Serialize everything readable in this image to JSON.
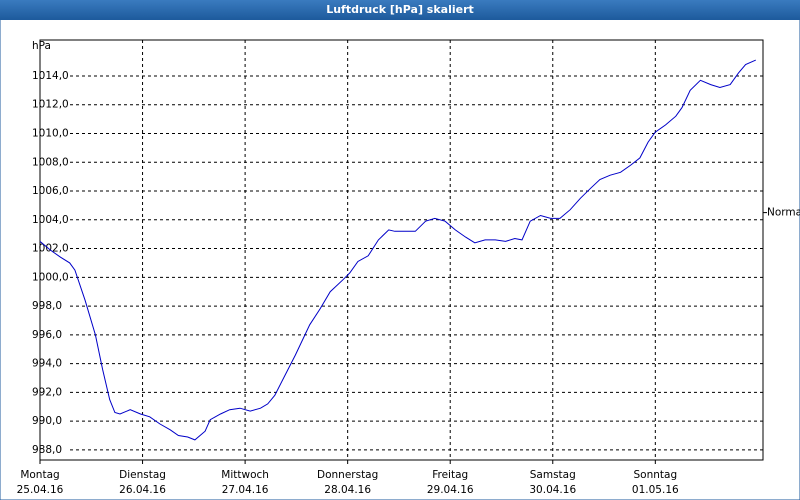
{
  "chart_data": {
    "type": "line",
    "title": "Luftdruck [hPa] skaliert",
    "y_unit": "hPa",
    "xlim": [
      0,
      7.05
    ],
    "ylim": [
      987.3,
      1016.5
    ],
    "xticks": [
      {
        "value": 0,
        "label": "Montag",
        "sublabel": "25.04.16"
      },
      {
        "value": 1,
        "label": "Dienstag",
        "sublabel": "26.04.16"
      },
      {
        "value": 2,
        "label": "Mittwoch",
        "sublabel": "27.04.16"
      },
      {
        "value": 3,
        "label": "Donnerstag",
        "sublabel": "28.04.16"
      },
      {
        "value": 4,
        "label": "Freitag",
        "sublabel": "29.04.16"
      },
      {
        "value": 5,
        "label": "Samstag",
        "sublabel": "30.04.16"
      },
      {
        "value": 6,
        "label": "Sonntag",
        "sublabel": "01.05.16"
      }
    ],
    "yticks": [
      {
        "value": 988,
        "label": "988,0"
      },
      {
        "value": 990,
        "label": "990,0"
      },
      {
        "value": 992,
        "label": "992,0"
      },
      {
        "value": 994,
        "label": "994,0"
      },
      {
        "value": 996,
        "label": "996,0"
      },
      {
        "value": 998,
        "label": "998,0"
      },
      {
        "value": 1000,
        "label": "1000,0"
      },
      {
        "value": 1002,
        "label": "1002,0"
      },
      {
        "value": 1004,
        "label": "1004,0"
      },
      {
        "value": 1006,
        "label": "1006,0"
      },
      {
        "value": 1008,
        "label": "1008,0"
      },
      {
        "value": 1010,
        "label": "1010,0"
      },
      {
        "value": 1012,
        "label": "1012,0"
      },
      {
        "value": 1014,
        "label": "1014,0"
      }
    ],
    "grid": true,
    "reference": {
      "label": "Normal",
      "value": 1004.5
    },
    "series": [
      {
        "color": "#0000c8",
        "x": [
          0,
          0.1,
          0.2,
          0.29,
          0.34,
          0.44,
          0.54,
          0.61,
          0.68,
          0.73,
          0.78,
          0.88,
          0.98,
          1.07,
          1.17,
          1.27,
          1.35,
          1.44,
          1.51,
          1.61,
          1.66,
          1.76,
          1.85,
          1.95,
          2.05,
          2.15,
          2.22,
          2.29,
          2.39,
          2.49,
          2.63,
          2.73,
          2.83,
          2.95,
          3.02,
          3.1,
          3.2,
          3.3,
          3.4,
          3.46,
          3.56,
          3.66,
          3.76,
          3.85,
          3.95,
          4.05,
          4.15,
          4.24,
          4.34,
          4.44,
          4.54,
          4.63,
          4.7,
          4.78,
          4.88,
          4.98,
          5.07,
          5.17,
          5.27,
          5.37,
          5.46,
          5.56,
          5.66,
          5.76,
          5.85,
          5.93,
          6.0,
          6.1,
          6.2,
          6.26,
          6.34,
          6.44,
          6.54,
          6.63,
          6.73,
          6.81,
          6.88,
          6.98
        ],
        "values": [
          1002.5,
          1001.9,
          1001.4,
          1001.0,
          1000.5,
          998.4,
          996.0,
          993.6,
          991.5,
          990.6,
          990.5,
          990.8,
          990.5,
          990.3,
          989.8,
          989.4,
          989.0,
          988.9,
          988.7,
          989.3,
          990.1,
          990.5,
          990.8,
          990.9,
          990.7,
          990.9,
          991.2,
          991.8,
          993.2,
          994.6,
          996.7,
          997.8,
          999.0,
          999.8,
          1000.3,
          1001.1,
          1001.5,
          1002.6,
          1003.3,
          1003.2,
          1003.2,
          1003.2,
          1003.9,
          1004.1,
          1003.9,
          1003.3,
          1002.8,
          1002.4,
          1002.6,
          1002.6,
          1002.5,
          1002.7,
          1002.6,
          1003.9,
          1004.3,
          1004.1,
          1004.1,
          1004.7,
          1005.5,
          1006.2,
          1006.8,
          1007.1,
          1007.3,
          1007.8,
          1008.3,
          1009.4,
          1010.1,
          1010.6,
          1011.2,
          1011.8,
          1013.0,
          1013.7,
          1013.4,
          1013.2,
          1013.4,
          1014.2,
          1014.8,
          1015.1
        ]
      }
    ]
  }
}
